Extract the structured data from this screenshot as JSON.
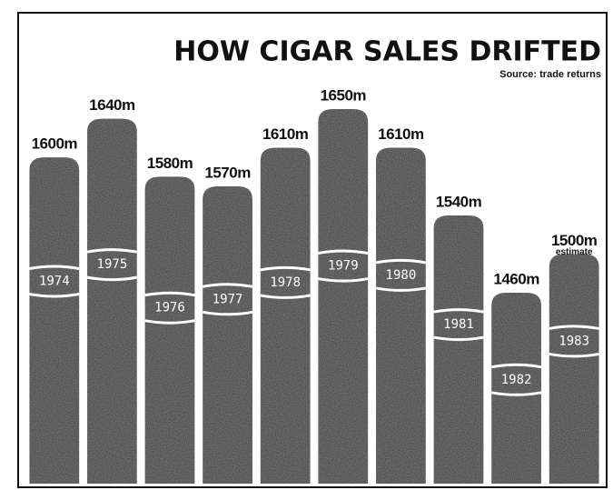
{
  "chart_data": {
    "type": "bar",
    "title": "HOW CIGAR SALES DRIFTED",
    "subtitle": "Source: trade returns",
    "categories": [
      "1974",
      "1975",
      "1976",
      "1977",
      "1978",
      "1979",
      "1980",
      "1981",
      "1982",
      "1983"
    ],
    "values": [
      1600,
      1640,
      1580,
      1570,
      1610,
      1650,
      1610,
      1540,
      1460,
      1500
    ],
    "value_labels": [
      "1600m",
      "1640m",
      "1580m",
      "1570m",
      "1610m",
      "1650m",
      "1610m",
      "1540m",
      "1460m",
      "1500m"
    ],
    "annotation": "estimate",
    "color": "#333333"
  }
}
